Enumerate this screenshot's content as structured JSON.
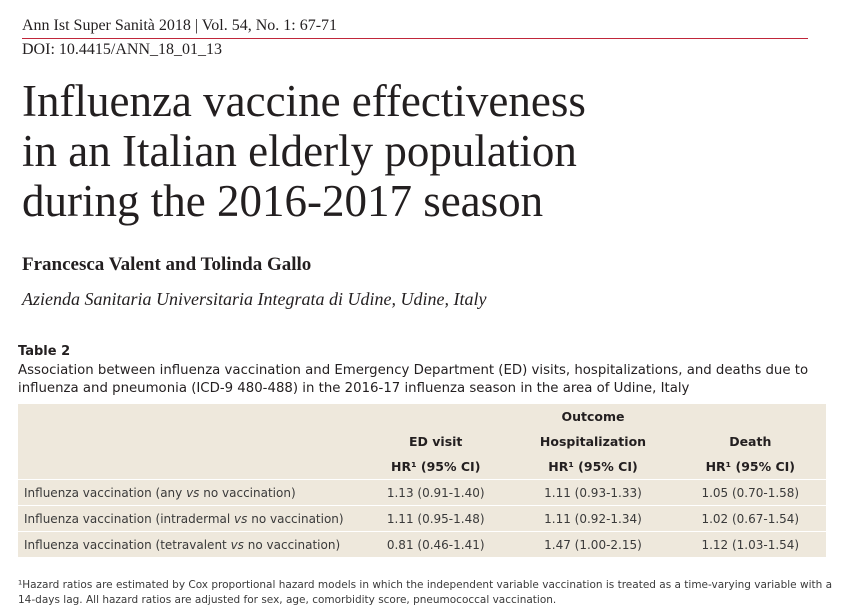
{
  "header": {
    "journal": "Ann Ist Super Sanità 2018 | Vol. 54, No. 1: 67-71",
    "doi": "DOI: 10.4415/ANN_18_01_13"
  },
  "title": {
    "lines": [
      "Influenza vaccine effectiveness",
      "in an Italian elderly population",
      "during the 2016-2017 season"
    ]
  },
  "authors": "Francesca Valent and Tolinda Gallo",
  "affiliation": "Azienda Sanitaria Universitaria Integrata di Udine, Udine, Italy",
  "table": {
    "label": "Table 2",
    "caption": "Association between influenza vaccination and Emergency Department (ED) visits, hospitalizations, and deaths due to influenza and pneumonia (ICD-9 480-488) in the 2016-17 influenza season in the area of Udine, Italy",
    "group_header": "Outcome",
    "columns": [
      "ED visit",
      "Hospitalization",
      "Death"
    ],
    "subheaders": [
      "HR¹ (95% CI)",
      "HR¹ (95% CI)",
      "HR¹ (95% CI)"
    ],
    "rows": [
      {
        "label": [
          "Influenza vaccination (any ",
          "vs",
          " no vaccination)"
        ],
        "cells": [
          "1.13 (0.91-1.40)",
          "1.11 (0.93-1.33)",
          "1.05 (0.70-1.58)"
        ]
      },
      {
        "label": [
          "Influenza vaccination (intradermal ",
          "vs",
          " no vaccination)"
        ],
        "cells": [
          "1.11 (0.95-1.48)",
          "1.11 (0.92-1.34)",
          "1.02 (0.67-1.54)"
        ]
      },
      {
        "label": [
          "Influenza vaccination (tetravalent ",
          "vs",
          " no vaccination)"
        ],
        "cells": [
          "0.81 (0.46-1.41)",
          "1.47 (1.00-2.15)",
          "1.12 (1.03-1.54)"
        ]
      }
    ],
    "footnote": "¹Hazard ratios are estimated by Cox proportional hazard models in which the independent variable vaccination is treated as a time-varying variable with a 14-days lag. All hazard ratios are adjusted for sex, age, comorbidity score, pneumococcal vaccination."
  }
}
